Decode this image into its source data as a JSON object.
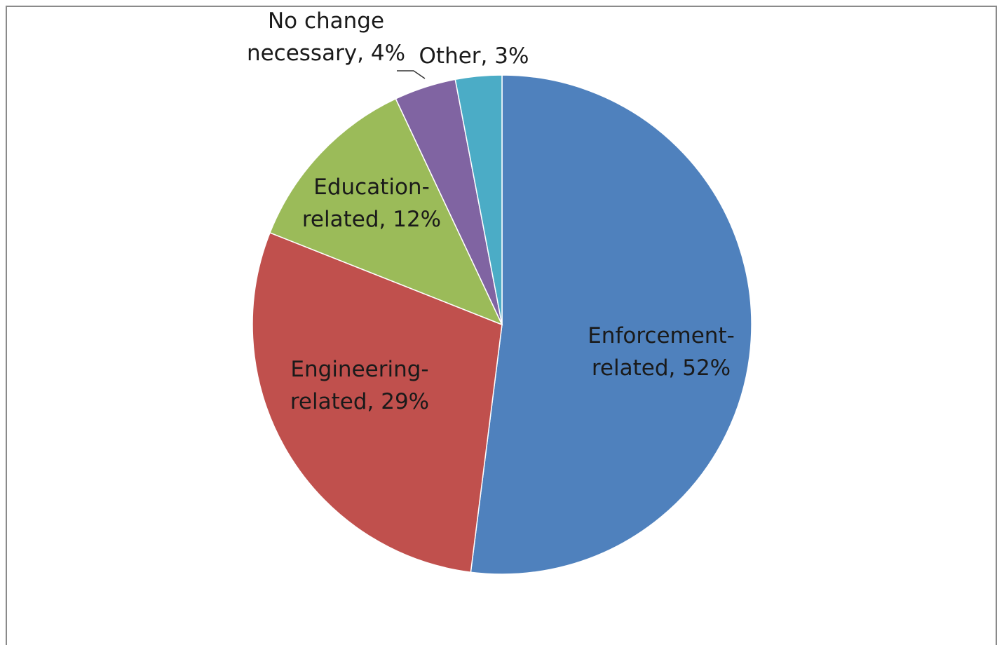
{
  "chart_data": {
    "type": "pie",
    "title": "",
    "start_angle_deg": 0,
    "direction": "clockwise",
    "slices": [
      {
        "label": "Enforcement-related",
        "value": 52,
        "display": [
          "Enforcement-",
          "related, 52%"
        ],
        "color": "#4F81BD"
      },
      {
        "label": "Engineering-related",
        "value": 29,
        "display": [
          "Engineering-",
          "related, 29%"
        ],
        "color": "#C0504D"
      },
      {
        "label": "Education-related",
        "value": 12,
        "display": [
          "Education-",
          "related, 12%"
        ],
        "color": "#9BBB59"
      },
      {
        "label": "No change necessary",
        "value": 4,
        "display": [
          "No change",
          "necessary, 4%"
        ],
        "color": "#8064A2"
      },
      {
        "label": "Other",
        "value": 3,
        "display": [
          "Other, 3%"
        ],
        "color": "#4BACC6"
      }
    ]
  }
}
